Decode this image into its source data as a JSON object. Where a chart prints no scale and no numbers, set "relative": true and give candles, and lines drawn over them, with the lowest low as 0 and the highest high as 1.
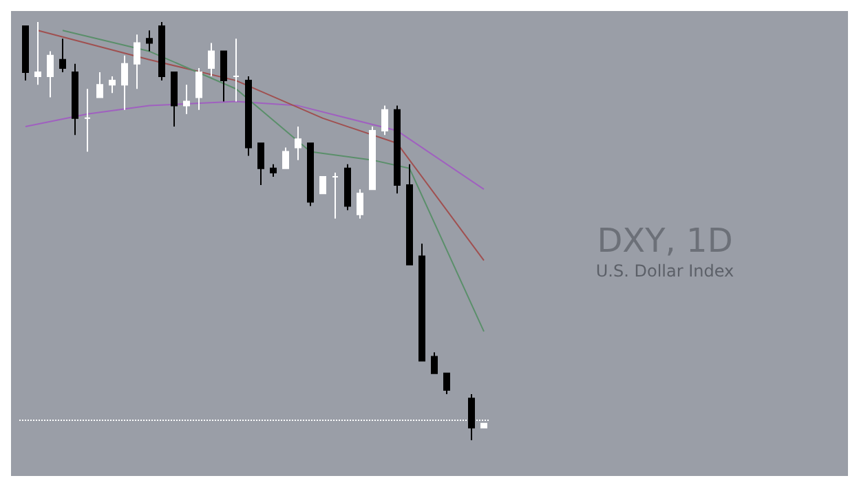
{
  "chart_data": {
    "type": "candlestick",
    "title": "DXY, 1D",
    "subtitle": "U.S. Dollar Index",
    "relative": true,
    "categories": [
      null,
      null,
      null,
      null,
      null,
      null,
      null,
      null,
      null,
      null,
      null,
      null,
      null,
      null,
      null,
      null,
      null,
      null,
      null,
      null,
      null,
      null,
      null,
      null,
      null,
      null,
      null,
      null,
      null,
      null,
      null,
      null,
      null,
      null,
      null,
      null,
      null,
      null
    ],
    "ohlc": [
      [
        0.99,
        0.99,
        0.86,
        0.88
      ],
      [
        0.87,
        1.0,
        0.85,
        0.88
      ],
      [
        0.87,
        0.93,
        0.82,
        0.92
      ],
      [
        0.91,
        0.96,
        0.88,
        0.89
      ],
      [
        0.88,
        0.9,
        0.73,
        0.77
      ],
      [
        0.77,
        0.84,
        0.69,
        0.77
      ],
      [
        0.82,
        0.88,
        0.82,
        0.85
      ],
      [
        0.85,
        0.87,
        0.83,
        0.86
      ],
      [
        0.85,
        0.92,
        0.79,
        0.9
      ],
      [
        0.9,
        0.97,
        0.84,
        0.95
      ],
      [
        0.96,
        0.98,
        0.93,
        0.95
      ],
      [
        0.99,
        1.0,
        0.86,
        0.87
      ],
      [
        0.88,
        0.88,
        0.75,
        0.8
      ],
      [
        0.8,
        0.85,
        0.78,
        0.81
      ],
      [
        0.82,
        0.89,
        0.79,
        0.88
      ],
      [
        0.89,
        0.95,
        0.87,
        0.93
      ],
      [
        0.93,
        0.93,
        0.81,
        0.86
      ],
      [
        0.87,
        0.96,
        0.81,
        0.87
      ],
      [
        0.86,
        0.87,
        0.68,
        0.7
      ],
      [
        0.71,
        0.71,
        0.61,
        0.65
      ],
      [
        0.65,
        0.66,
        0.63,
        0.64
      ],
      [
        0.65,
        0.7,
        0.65,
        0.69
      ],
      [
        0.7,
        0.75,
        0.67,
        0.72
      ],
      [
        0.71,
        0.71,
        0.56,
        0.57
      ],
      [
        0.59,
        0.63,
        0.59,
        0.63
      ],
      [
        0.63,
        0.64,
        0.53,
        0.63
      ],
      [
        0.65,
        0.66,
        0.55,
        0.56
      ],
      [
        0.54,
        0.6,
        0.53,
        0.59
      ],
      [
        0.6,
        0.75,
        0.6,
        0.74
      ],
      [
        0.74,
        0.8,
        0.73,
        0.79
      ],
      [
        0.79,
        0.8,
        0.59,
        0.61
      ],
      [
        0.61,
        0.66,
        0.42,
        0.42
      ],
      [
        0.44,
        0.47,
        0.19,
        0.19
      ],
      [
        0.2,
        0.21,
        0.16,
        0.16
      ],
      [
        0.16,
        0.16,
        0.11,
        0.12
      ],
      null,
      [
        0.1,
        0.11,
        0,
        0.03
      ],
      [
        0.03,
        0.04,
        0.03,
        0.04
      ]
    ],
    "series": [
      {
        "type": "line",
        "color": "#a060c0",
        "values": [
          0.75,
          null,
          null,
          null,
          null,
          0.78,
          null,
          null,
          null,
          null,
          0.8,
          null,
          null,
          null,
          null,
          null,
          null,
          0.81,
          null,
          null,
          null,
          null,
          0.8,
          null,
          null,
          null,
          null,
          null,
          null,
          null,
          0.74,
          null,
          null,
          null,
          null,
          null,
          null,
          0.6
        ]
      },
      {
        "type": "line",
        "color": "#a05050",
        "values": [
          null,
          0.98,
          null,
          null,
          null,
          null,
          null,
          null,
          null,
          null,
          0.91,
          null,
          null,
          null,
          null,
          null,
          null,
          0.86,
          null,
          null,
          null,
          null,
          null,
          null,
          0.77,
          null,
          null,
          null,
          null,
          null,
          0.71,
          null,
          null,
          null,
          null,
          null,
          null,
          0.43
        ]
      },
      {
        "type": "line",
        "color": "#5a8f6a",
        "values": [
          null,
          null,
          null,
          0.98,
          null,
          null,
          null,
          null,
          null,
          null,
          0.93,
          null,
          null,
          null,
          null,
          null,
          null,
          0.84,
          null,
          null,
          null,
          null,
          null,
          0.69,
          null,
          null,
          null,
          null,
          0.67,
          null,
          null,
          0.65,
          null,
          null,
          null,
          null,
          null,
          0.26
        ]
      }
    ],
    "ref_lines": [
      {
        "axis": "y",
        "value": 0.05,
        "color": "#ffffff",
        "line_style": "dotted"
      }
    ]
  }
}
